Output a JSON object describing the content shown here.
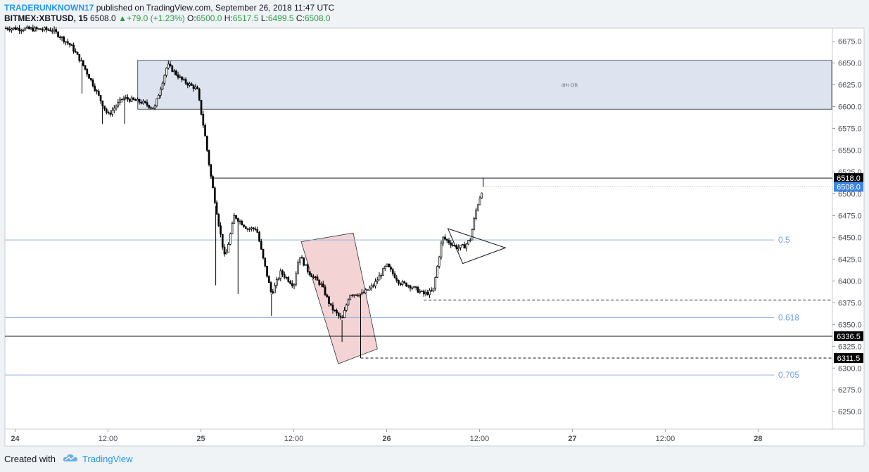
{
  "header": {
    "author": "TRADERUNKNOWN17",
    "published_text": "published on TradingView.com, September 26, 2018 11:47 UTC",
    "symbol": "BITMEX:XBTUSD, 15",
    "last": "6508.0",
    "change_arrow": "▲",
    "change": "+79.0 (+1.23%)",
    "o_label": "O:",
    "o": "6500.0",
    "h_label": "H:",
    "h": "6517.5",
    "l_label": "L:",
    "l": "6499.5",
    "c_label": "C:",
    "c": "6508.0"
  },
  "footer": {
    "created_with": "Created with",
    "brand": "TradingView",
    "logo_icon": "tradingview-cloud-icon"
  },
  "colors": {
    "background": "#f0f3f5",
    "plot_bg": "#ffffff",
    "ob_zone": "#dde4ef",
    "bear_channel": "#f3d3d3",
    "fib_line": "#8fb2e3",
    "fib_label": "#6f9fe0",
    "price_label_bg": "#000000",
    "last_price_bg": "#3c85e0",
    "candle": "#000000"
  },
  "chart_data": {
    "type": "candlestick",
    "symbol": "BITMEX:XBTUSD",
    "interval": "15",
    "ylim": [
      6230,
      6690
    ],
    "yticks": [
      6250,
      6275,
      6300,
      6325,
      6350,
      6375,
      6400,
      6425,
      6450,
      6475,
      6500,
      6525,
      6550,
      6575,
      6600,
      6625,
      6650,
      6675
    ],
    "ytick_labels": [
      "6250.0",
      "6275.0",
      "6300.0",
      "6325.0",
      "6350.0",
      "6375.0",
      "6400.0",
      "6425.0",
      "6450.0",
      "6475.0",
      "6500.0",
      "6525.0",
      "6550.0",
      "6575.0",
      "6600.0",
      "6625.0",
      "6650.0",
      "6675.0"
    ],
    "xlim": [
      -0.055,
      4.4
    ],
    "xticks": [
      0,
      0.5,
      1,
      1.5,
      2,
      2.5,
      3,
      3.5,
      4
    ],
    "xtick_labels": [
      "24",
      "12:00",
      "25",
      "12:00",
      "26",
      "12:00",
      "27",
      "12:00",
      "28"
    ],
    "bold_xticks": [
      "24",
      "25",
      "26",
      "27",
      "28"
    ],
    "price_path": [
      [
        -0.05,
        6690
      ],
      [
        0.2,
        6688
      ],
      [
        0.3,
        6670
      ],
      [
        0.36,
        6650
      ],
      [
        0.42,
        6625
      ],
      [
        0.5,
        6590
      ],
      [
        0.58,
        6610
      ],
      [
        0.68,
        6605
      ],
      [
        0.75,
        6598
      ],
      [
        0.82,
        6648
      ],
      [
        0.9,
        6630
      ],
      [
        0.98,
        6620
      ],
      [
        1.02,
        6570
      ],
      [
        1.05,
        6525
      ],
      [
        1.1,
        6460
      ],
      [
        1.13,
        6425
      ],
      [
        1.18,
        6475
      ],
      [
        1.25,
        6460
      ],
      [
        1.3,
        6460
      ],
      [
        1.33,
        6430
      ],
      [
        1.38,
        6385
      ],
      [
        1.43,
        6410
      ],
      [
        1.5,
        6395
      ],
      [
        1.53,
        6430
      ],
      [
        1.58,
        6410
      ],
      [
        1.65,
        6395
      ],
      [
        1.7,
        6370
      ],
      [
        1.76,
        6355
      ],
      [
        1.8,
        6385
      ],
      [
        1.87,
        6385
      ],
      [
        1.93,
        6395
      ],
      [
        2.0,
        6418
      ],
      [
        2.07,
        6398
      ],
      [
        2.12,
        6395
      ],
      [
        2.2,
        6385
      ],
      [
        2.25,
        6388
      ],
      [
        2.3,
        6450
      ],
      [
        2.38,
        6438
      ],
      [
        2.42,
        6440
      ],
      [
        2.45,
        6448
      ],
      [
        2.48,
        6480
      ],
      [
        2.5,
        6495
      ],
      [
        2.52,
        6508
      ]
    ],
    "wicks": [
      {
        "x": 0.36,
        "low": 6615
      },
      {
        "x": 0.47,
        "low": 6580
      },
      {
        "x": 0.59,
        "low": 6580
      },
      {
        "x": 1.08,
        "low": 6395
      },
      {
        "x": 1.2,
        "low": 6385
      },
      {
        "x": 1.38,
        "low": 6360
      },
      {
        "x": 1.76,
        "low": 6330
      },
      {
        "x": 1.86,
        "low": 6311.5
      },
      {
        "x": 2.52,
        "high": 6518
      }
    ],
    "annotations": {
      "order_block": {
        "label": "4Hr OB",
        "x1": 0.66,
        "x2": 4.4,
        "y1": 6597,
        "y2": 6653
      },
      "bear_channel": {
        "corners": [
          [
            1.54,
            6445
          ],
          [
            1.82,
            6455
          ],
          [
            1.95,
            6322
          ],
          [
            1.74,
            6305
          ]
        ]
      },
      "triangle": {
        "apex": [
          2.64,
          6438
        ],
        "top": [
          2.33,
          6460
        ],
        "bottom": [
          2.41,
          6420
        ]
      },
      "fib_levels": [
        {
          "label": "0.5",
          "price": 6447
        },
        {
          "label": "0.618",
          "price": 6358
        },
        {
          "label": "0.705",
          "price": 6292
        }
      ],
      "horizontal_lines": [
        {
          "price": 6518.0,
          "x_from": 1.05,
          "label": "6518.0"
        },
        {
          "price": 6336.5,
          "x_from": -0.055,
          "label": "6336.5"
        }
      ],
      "dashed_lines": [
        {
          "price": 6378,
          "x_from": 2.2,
          "label": null
        },
        {
          "price": 6311.5,
          "x_from": 1.86,
          "label": "6311.5"
        }
      ],
      "last_price": {
        "price": 6508.0,
        "label": "6508.0"
      }
    }
  }
}
